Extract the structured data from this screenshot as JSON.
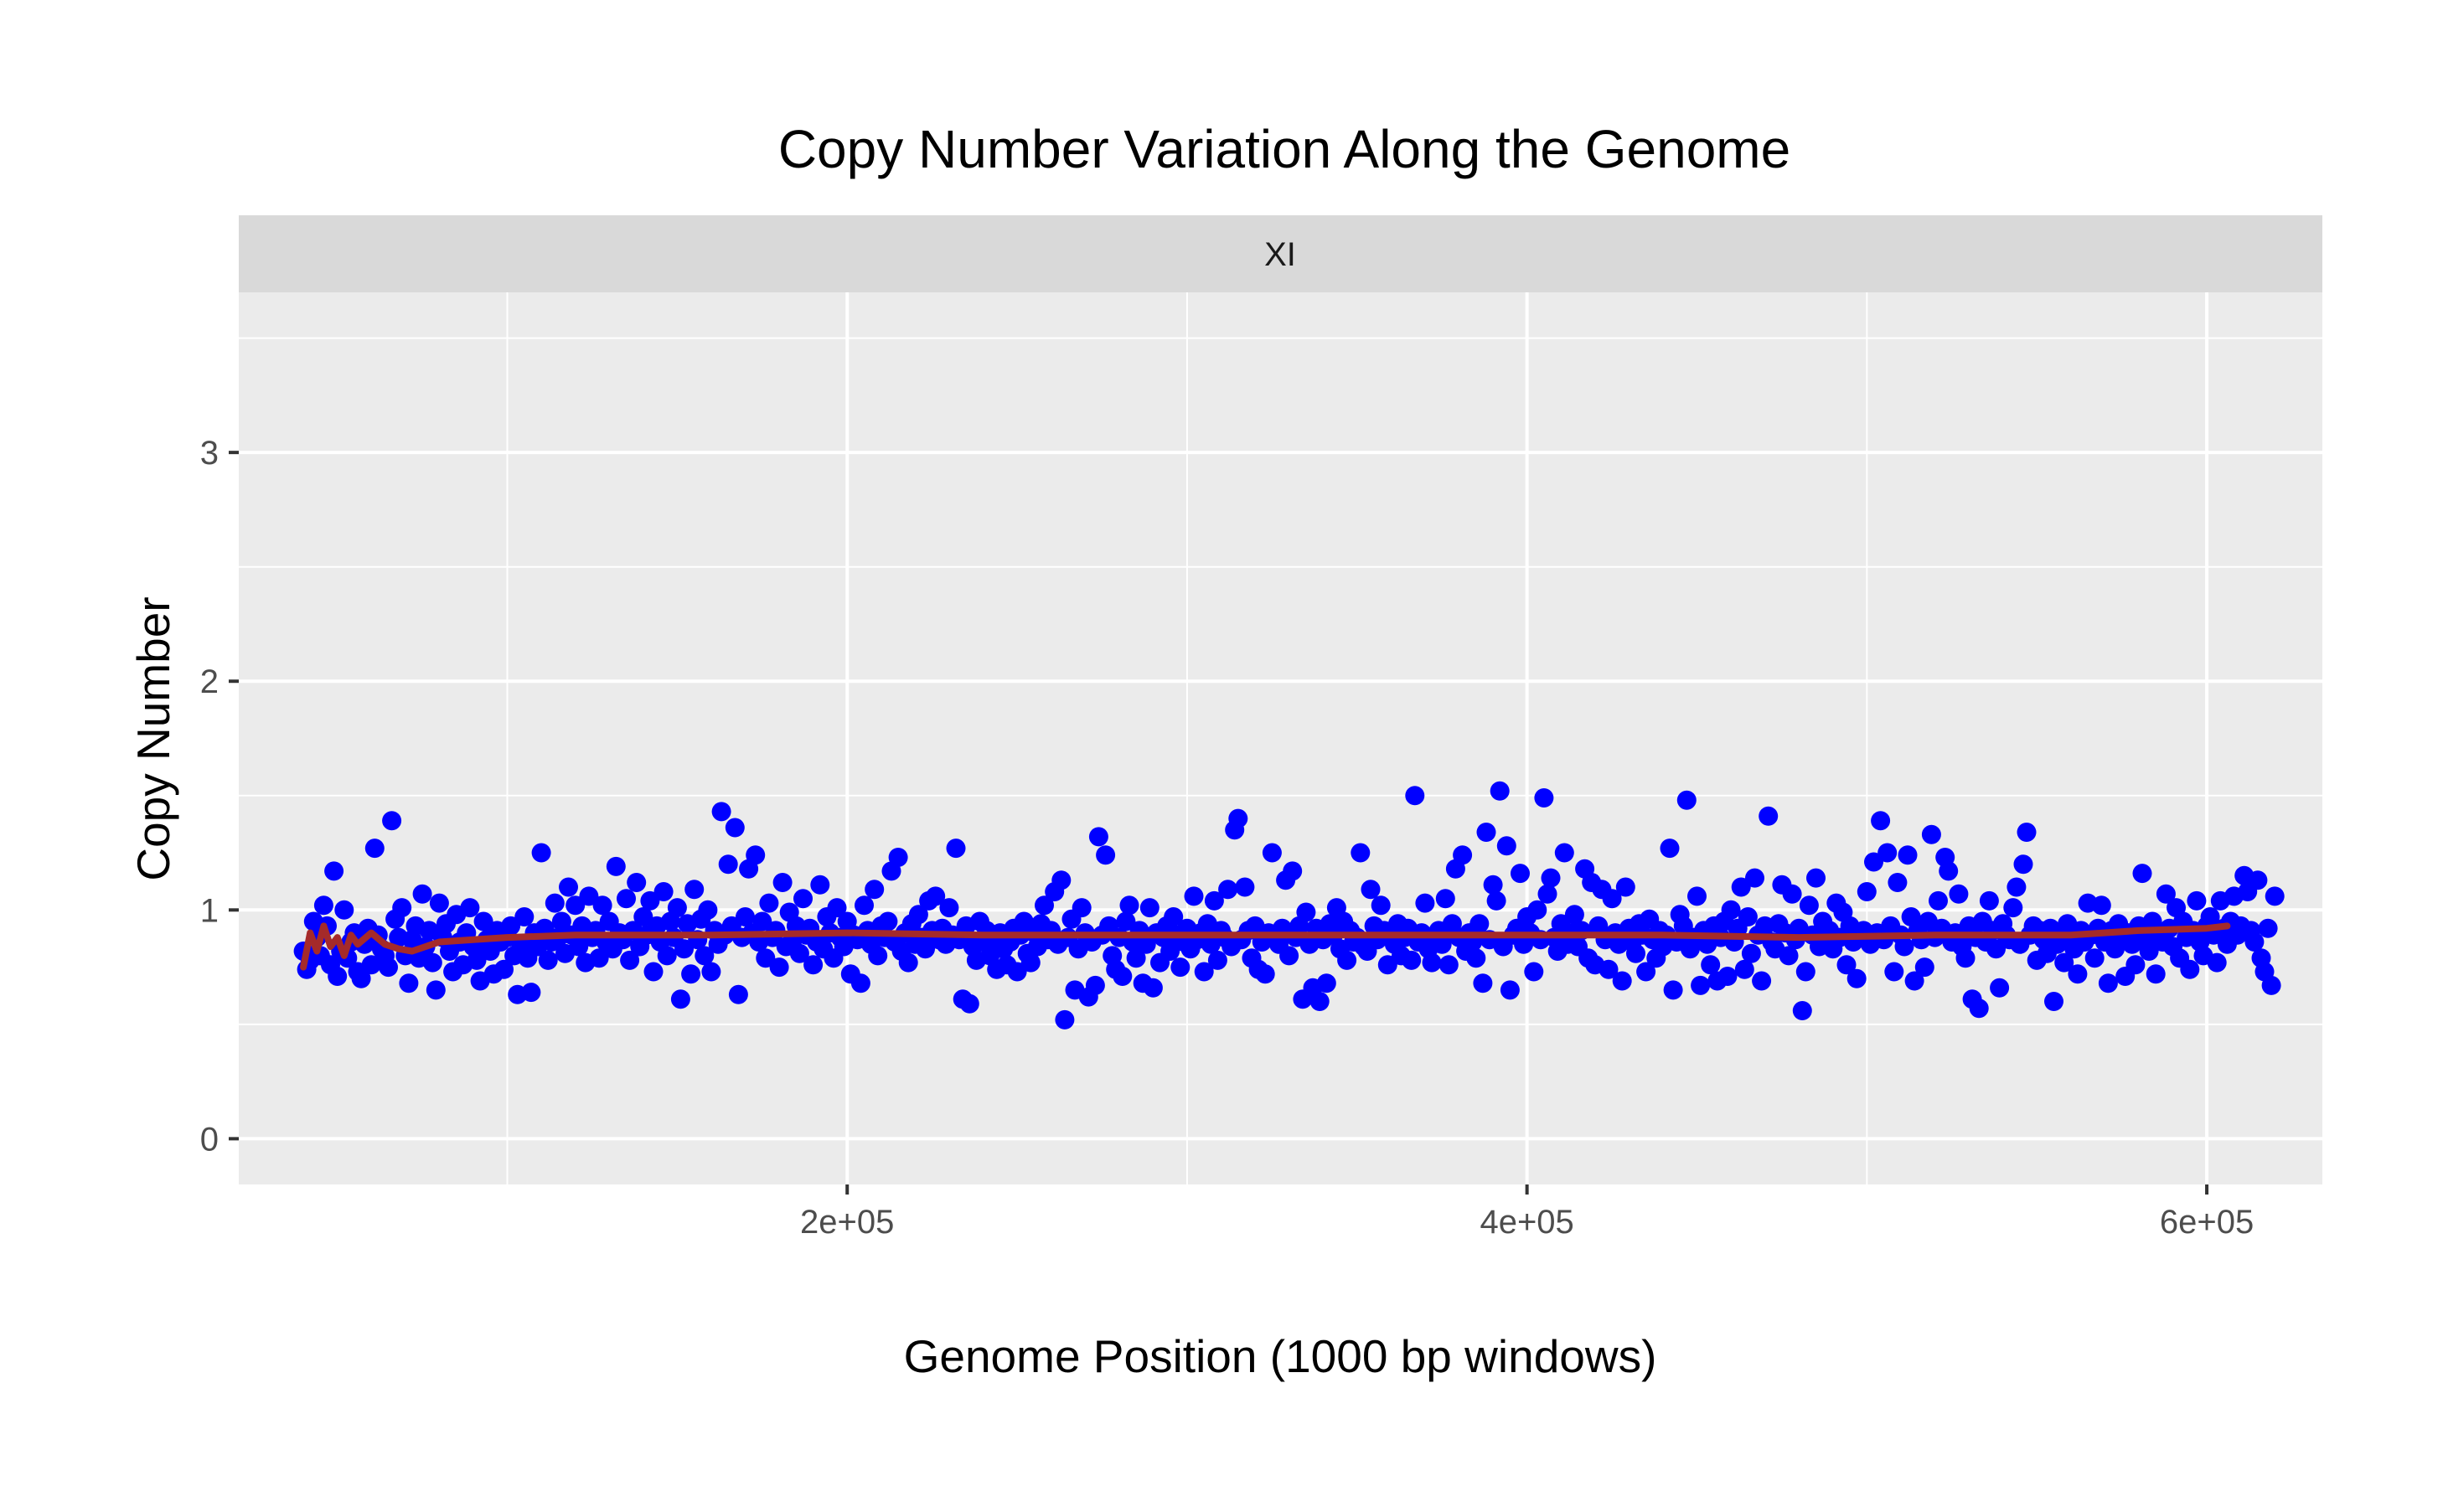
{
  "chart_data": {
    "type": "scatter",
    "title": "Copy Number Variation Along the Genome",
    "xlabel": "Genome Position (1000 bp windows)",
    "ylabel": "Copy Number",
    "facet_label": "XI",
    "xlim": [
      21000,
      634000
    ],
    "ylim": [
      -0.2,
      3.7
    ],
    "x_ticks": [
      200000,
      400000,
      600000
    ],
    "x_tick_labels": [
      "2e+05",
      "4e+05",
      "6e+05"
    ],
    "x_minor_ticks": [
      100000,
      300000,
      500000
    ],
    "y_ticks": [
      0,
      1,
      2,
      3
    ],
    "y_tick_labels": [
      "0",
      "1",
      "2",
      "3"
    ],
    "y_minor_ticks": [
      0.5,
      1.5,
      2.5,
      3.5
    ],
    "grid": true,
    "point_color": "#0000ff",
    "trend_color": "#a52a2a",
    "panel_color": "#ebebeb",
    "strip_color": "#d9d9d9",
    "points": {
      "x_start": 40000,
      "x_step": 1000,
      "y": [
        0.82,
        0.74,
        0.78,
        0.95,
        0.88,
        0.8,
        1.02,
        0.93,
        0.76,
        1.17,
        0.71,
        0.82,
        1.0,
        0.79,
        0.86,
        0.9,
        0.73,
        0.7,
        0.85,
        0.92,
        0.76,
        1.27,
        0.89,
        0.83,
        0.8,
        0.75,
        1.39,
        0.96,
        0.88,
        1.01,
        0.8,
        0.68,
        0.87,
        0.93,
        0.79,
        1.07,
        0.84,
        0.91,
        0.77,
        0.65,
        1.03,
        0.88,
        0.94,
        0.82,
        0.73,
        0.98,
        0.86,
        0.76,
        0.9,
        1.01,
        0.84,
        0.78,
        0.69,
        0.95,
        0.87,
        0.82,
        0.72,
        0.91,
        0.86,
        0.74,
        0.88,
        0.93,
        0.8,
        0.63,
        0.85,
        0.97,
        0.79,
        0.64,
        0.9,
        0.84,
        1.25,
        0.92,
        0.78,
        0.86,
        1.03,
        0.88,
        0.95,
        0.81,
        1.1,
        0.89,
        1.02,
        0.84,
        0.93,
        0.77,
        1.06,
        0.88,
        0.91,
        0.79,
        1.02,
        0.86,
        0.95,
        0.83,
        1.19,
        0.9,
        0.87,
        1.05,
        0.78,
        0.91,
        1.12,
        0.84,
        0.97,
        0.89,
        1.04,
        0.73,
        0.93,
        0.86,
        1.08,
        0.8,
        0.95,
        0.88,
        1.01,
        0.61,
        0.83,
        0.94,
        0.72,
        1.09,
        0.87,
        0.96,
        0.8,
        1.0,
        0.73,
        0.91,
        0.85,
        1.43,
        0.89,
        1.2,
        0.93,
        1.36,
        0.63,
        0.88,
        0.97,
        1.18,
        0.9,
        1.24,
        0.86,
        0.95,
        0.79,
        1.03,
        0.88,
        0.91,
        0.75,
        1.12,
        0.84,
        0.99,
        0.87,
        0.93,
        0.81,
        1.05,
        0.89,
        0.92,
        0.76,
        0.86,
        1.11,
        0.83,
        0.97,
        0.9,
        0.79,
        1.01,
        0.88,
        0.84,
        0.95,
        0.72,
        0.89,
        0.87,
        0.68,
        1.02,
        0.91,
        0.85,
        1.09,
        0.8,
        0.93,
        0.88,
        0.95,
        1.17,
        0.86,
        1.23,
        0.82,
        0.9,
        0.77,
        0.94,
        0.85,
        0.98,
        0.88,
        0.83,
        1.04,
        0.91,
        1.06,
        0.87,
        0.92,
        0.85,
        1.01,
        0.89,
        1.27,
        0.87,
        0.61,
        0.93,
        0.59,
        0.84,
        0.78,
        0.95,
        0.86,
        0.91,
        0.8,
        0.88,
        0.74,
        0.9,
        0.83,
        0.76,
        0.86,
        0.92,
        0.73,
        0.89,
        0.95,
        0.81,
        0.77,
        0.9,
        0.84,
        0.94,
        1.02,
        0.87,
        0.91,
        1.08,
        0.85,
        1.13,
        0.52,
        0.88,
        0.96,
        0.65,
        0.83,
        1.01,
        0.9,
        0.62,
        0.86,
        0.67,
        1.32,
        0.89,
        1.24,
        0.93,
        0.8,
        0.74,
        0.88,
        0.71,
        0.95,
        1.02,
        0.86,
        0.79,
        0.91,
        0.68,
        0.85,
        1.01,
        0.66,
        0.9,
        0.77,
        0.88,
        0.93,
        0.82,
        0.97,
        0.89,
        0.75,
        0.86,
        0.92,
        0.83,
        1.06,
        0.87,
        0.9,
        0.73,
        0.94,
        0.85,
        1.04,
        0.78,
        0.91,
        0.88,
        1.09,
        0.84,
        1.35,
        1.4,
        0.87,
        1.1,
        0.91,
        0.79,
        0.93,
        0.74,
        0.86,
        0.72,
        0.9,
        1.25,
        0.88,
        0.85,
        0.92,
        1.13,
        0.8,
        1.17,
        0.88,
        0.93,
        0.61,
        0.99,
        0.85,
        0.66,
        0.92,
        0.6,
        0.87,
        0.68,
        0.94,
        0.89,
        1.01,
        0.83,
        0.95,
        0.78,
        0.91,
        0.86,
        0.88,
        1.25,
        0.84,
        0.82,
        1.09,
        0.93,
        0.87,
        1.02,
        0.91,
        0.76,
        0.89,
        0.85,
        0.94,
        0.8,
        0.88,
        0.92,
        0.78,
        1.5,
        0.86,
        0.9,
        1.03,
        0.83,
        0.77,
        0.89,
        0.91,
        0.85,
        1.05,
        0.76,
        0.94,
        1.18,
        0.88,
        1.24,
        0.82,
        0.9,
        0.86,
        0.79,
        0.94,
        0.68,
        1.34,
        0.87,
        1.11,
        1.04,
        1.52,
        0.84,
        1.28,
        0.65,
        0.89,
        0.92,
        1.16,
        0.85,
        0.97,
        0.9,
        0.73,
        1.0,
        0.87,
        1.49,
        1.07,
        1.14,
        0.88,
        0.82,
        0.94,
        1.25,
        0.85,
        0.9,
        0.98,
        0.84,
        0.91,
        1.18,
        0.79,
        1.12,
        0.76,
        0.93,
        1.09,
        0.87,
        0.74,
        1.05,
        0.9,
        0.85,
        0.69,
        1.1,
        0.92,
        0.86,
        0.81,
        0.94,
        0.89,
        0.73,
        0.96,
        0.87,
        0.79,
        0.91,
        0.84,
        0.89,
        1.27,
        0.65,
        0.86,
        0.98,
        0.93,
        1.48,
        0.83,
        0.88,
        1.06,
        0.67,
        0.91,
        0.85,
        0.76,
        0.93,
        0.69,
        0.88,
        0.95,
        0.71,
        1.0,
        0.86,
        0.92,
        1.1,
        0.74,
        0.97,
        0.81,
        1.14,
        0.89,
        0.69,
        0.93,
        1.41,
        0.86,
        0.83,
        0.94,
        1.11,
        0.9,
        0.8,
        1.07,
        0.87,
        0.92,
        0.56,
        0.73,
        1.02,
        0.89,
        1.14,
        0.84,
        0.95,
        0.86,
        0.91,
        0.83,
        1.03,
        0.88,
        0.99,
        0.76,
        0.93,
        0.86,
        0.7,
        0.88,
        0.91,
        1.08,
        0.85,
        1.21,
        0.9,
        1.39,
        0.87,
        1.25,
        0.93,
        0.73,
        1.12,
        0.89,
        0.84,
        1.24,
        0.97,
        0.69,
        0.91,
        0.87,
        0.75,
        0.95,
        1.33,
        0.88,
        1.04,
        0.92,
        1.23,
        1.17,
        0.86,
        0.9,
        1.07,
        0.84,
        0.79,
        0.93,
        0.61,
        0.88,
        0.57,
        0.95,
        0.86,
        1.04,
        0.91,
        0.83,
        0.66,
        0.94,
        0.89,
        0.87,
        1.01,
        1.1,
        0.85,
        1.2,
        1.34,
        0.89,
        0.93,
        0.78,
        0.91,
        0.87,
        0.81,
        0.92,
        0.6,
        0.85,
        0.9,
        0.77,
        0.94,
        0.88,
        0.83,
        0.72,
        0.91,
        0.86,
        1.03,
        0.89,
        0.79,
        0.92,
        1.02,
        0.86,
        0.68,
        0.91,
        0.83,
        0.94,
        0.88,
        0.71,
        0.9,
        0.85,
        0.76,
        0.93,
        1.16,
        0.88,
        0.82,
        0.95,
        0.72,
        0.9,
        0.86,
        1.07,
        0.92,
        0.84,
        1.01,
        0.79,
        0.95,
        0.88,
        0.74,
        0.91,
        1.04,
        0.86,
        0.8,
        0.93,
        0.97,
        0.89,
        0.77,
        1.04,
        0.92,
        0.85,
        0.95,
        1.06,
        0.89,
        0.93,
        1.15,
        1.08,
        0.91,
        0.86,
        1.13,
        0.79,
        0.73,
        0.92,
        0.67,
        1.06
      ]
    },
    "trend_line": {
      "x": [
        40000,
        42000,
        44000,
        46000,
        48000,
        50000,
        52000,
        54000,
        56000,
        60000,
        64000,
        68000,
        72000,
        76000,
        80000,
        90000,
        100000,
        120000,
        160000,
        200000,
        240000,
        280000,
        320000,
        360000,
        400000,
        440000,
        480000,
        520000,
        560000,
        580000,
        600000,
        606000
      ],
      "y": [
        0.75,
        0.9,
        0.82,
        0.93,
        0.84,
        0.88,
        0.8,
        0.89,
        0.85,
        0.9,
        0.85,
        0.83,
        0.82,
        0.84,
        0.86,
        0.87,
        0.88,
        0.89,
        0.89,
        0.9,
        0.89,
        0.89,
        0.89,
        0.89,
        0.89,
        0.89,
        0.88,
        0.89,
        0.89,
        0.91,
        0.92,
        0.93
      ]
    }
  }
}
